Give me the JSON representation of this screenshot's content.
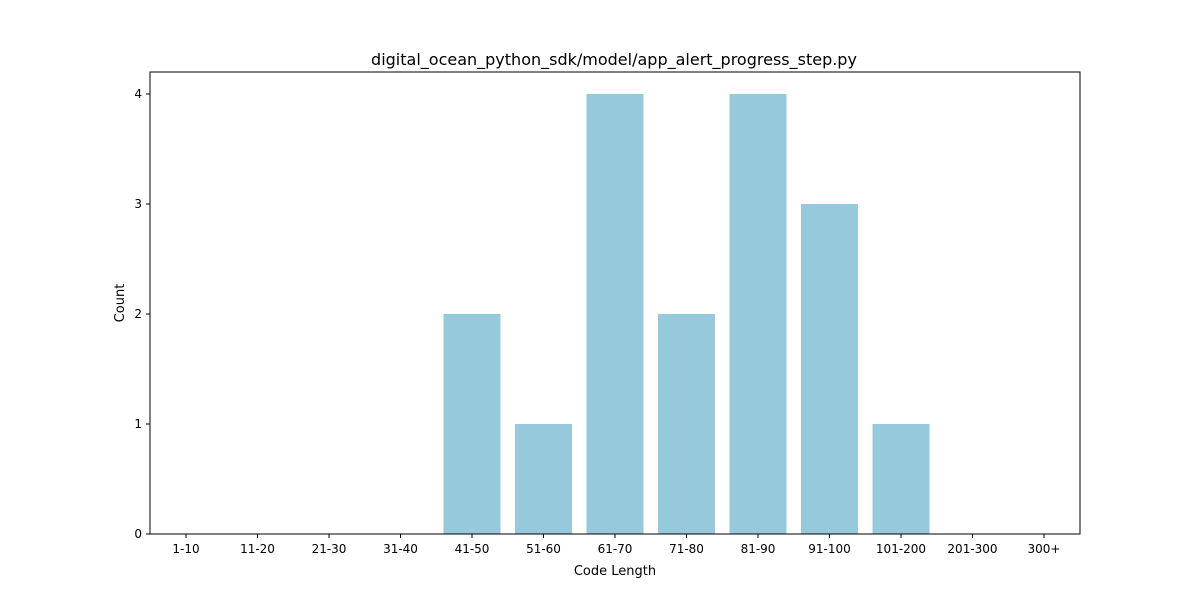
{
  "chart_data": {
    "type": "bar",
    "title": "digital_ocean_python_sdk/model/app_alert_progress_step.py",
    "xlabel": "Code Length",
    "ylabel": "Count",
    "categories": [
      "1-10",
      "11-20",
      "21-30",
      "31-40",
      "41-50",
      "51-60",
      "61-70",
      "71-80",
      "81-90",
      "91-100",
      "101-200",
      "201-300",
      "300+"
    ],
    "values": [
      0,
      0,
      0,
      0,
      2,
      1,
      4,
      2,
      4,
      3,
      1,
      0,
      0
    ],
    "yticks": [
      0,
      1,
      2,
      3,
      4
    ],
    "ylim": [
      0,
      4.2
    ],
    "bar_color": "#96c9dc",
    "grid": false,
    "legend": "none"
  }
}
